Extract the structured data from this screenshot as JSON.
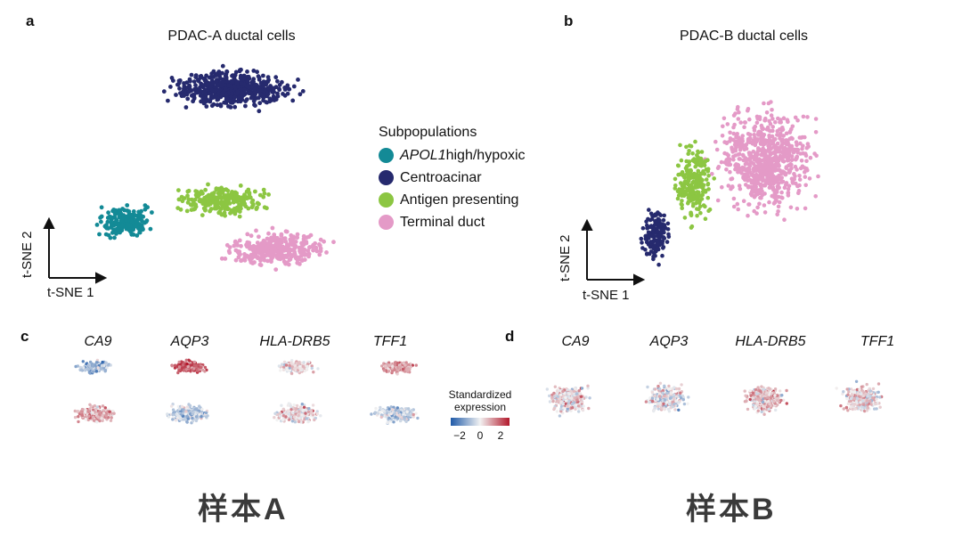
{
  "panels": {
    "a": {
      "letter": "a",
      "title": "PDAC-A ductal cells",
      "axis_y": "t-SNE 2",
      "axis_x": "t-SNE 1"
    },
    "b": {
      "letter": "b",
      "title": "PDAC-B ductal cells",
      "axis_y": "t-SNE 2",
      "axis_x": "t-SNE 1"
    },
    "c": {
      "letter": "c",
      "genes": [
        "CA9",
        "AQP3",
        "HLA-DRB5",
        "TFF1"
      ]
    },
    "d": {
      "letter": "d",
      "genes": [
        "CA9",
        "AQP3",
        "HLA-DRB5",
        "TFF1"
      ]
    }
  },
  "legend": {
    "title": "Subpopulations",
    "items": [
      {
        "label_italic": "APOL1",
        "label": " high/hypoxic",
        "color": "#138a96"
      },
      {
        "label_italic": "",
        "label": "Centroacinar",
        "color": "#262a6e"
      },
      {
        "label_italic": "",
        "label": "Antigen presenting",
        "color": "#8cc642"
      },
      {
        "label_italic": "",
        "label": "Terminal duct",
        "color": "#e49ac7"
      }
    ]
  },
  "colorbar": {
    "title_line1": "Standardized",
    "title_line2": "expression",
    "ticks": [
      "−2",
      "0",
      "2"
    ],
    "colors": [
      "#1f5aa8",
      "#f2f2f2",
      "#b2182b"
    ]
  },
  "bottom_labels": [
    "样本A",
    "样本B"
  ]
}
